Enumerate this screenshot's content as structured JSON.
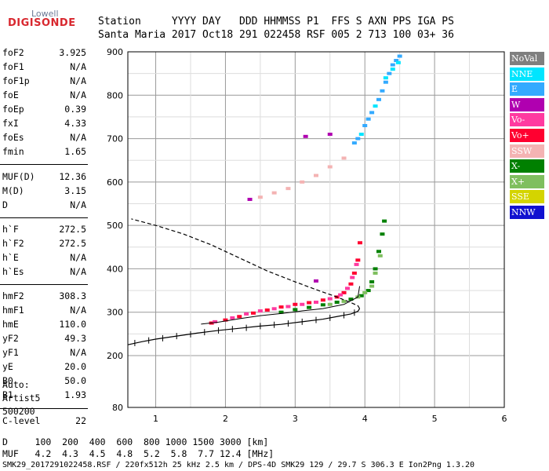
{
  "logo": {
    "top": "Lowell",
    "main": "DIGISONDE"
  },
  "header": {
    "line1": "Station     YYYY DAY   DDD HHMMSS P1  FFS S AXN PPS IGA PS",
    "line2": "Santa Maria 2017 Oct18 291 022458 RSF 005 2 713 100 03+ 36"
  },
  "params": [
    {
      "k": "foF2",
      "v": "3.925"
    },
    {
      "k": "foF1",
      "v": "N/A"
    },
    {
      "k": "foF1p",
      "v": "N/A"
    },
    {
      "k": "foE",
      "v": "N/A"
    },
    {
      "k": "foEp",
      "v": "0.39"
    },
    {
      "k": "fxI",
      "v": "4.33"
    },
    {
      "k": "foEs",
      "v": "N/A"
    },
    {
      "k": "fmin",
      "v": "1.65"
    },
    {
      "k": "MUF(D)",
      "v": "12.36"
    },
    {
      "k": "M(D)",
      "v": "3.15"
    },
    {
      "k": "D",
      "v": "N/A"
    },
    {
      "k": "h`F",
      "v": "272.5"
    },
    {
      "k": "h`F2",
      "v": "272.5"
    },
    {
      "k": "h`E",
      "v": "N/A"
    },
    {
      "k": "h`Es",
      "v": "N/A"
    },
    {
      "k": "hmF2",
      "v": "308.3"
    },
    {
      "k": "hmF1",
      "v": "N/A"
    },
    {
      "k": "hmE",
      "v": "110.0"
    },
    {
      "k": "yF2",
      "v": "49.3"
    },
    {
      "k": "yF1",
      "v": "N/A"
    },
    {
      "k": "yE",
      "v": "20.0"
    },
    {
      "k": "B0",
      "v": "50.0"
    },
    {
      "k": "B1",
      "v": "1.93"
    },
    {
      "k": "C-level",
      "v": "22"
    }
  ],
  "auto": {
    "line1": "Auto:",
    "line2": "Artist5",
    "line3": "500200"
  },
  "footer": {
    "d_line": "D     100  200  400  600  800 1000 1500 3000 [km]",
    "muf_line": "MUF   4.2  4.3  4.5  4.8  5.2  5.8  7.7 12.4 [MHz]",
    "file_line": "SMK29_2017291022458.RSF / 220fx512h 25 kHz 2.5 km / DPS-4D SMK29 129 / 29.7 S 306.3 E Ion2Png 1.3.20"
  },
  "legend": [
    {
      "label": "NoVal",
      "color": "#7f7f7f"
    },
    {
      "label": "NNE",
      "color": "#00e5ff"
    },
    {
      "label": "E",
      "color": "#33aaff"
    },
    {
      "label": "W",
      "color": "#b000b0"
    },
    {
      "label": "Vo-",
      "color": "#ff3aa0"
    },
    {
      "label": "Vo+",
      "color": "#ff0030"
    },
    {
      "label": "SSW",
      "color": "#f4b3b3"
    },
    {
      "label": "X-",
      "color": "#008000"
    },
    {
      "label": "X+",
      "color": "#7fbf5f"
    },
    {
      "label": "SSE",
      "color": "#d4d400"
    },
    {
      "label": "NNW",
      "color": "#1010d0"
    }
  ],
  "chart_data": {
    "type": "scatter",
    "xlabel": "",
    "ylabel": "",
    "xlim": [
      0.6,
      6.0
    ],
    "ylim": [
      80,
      900
    ],
    "xticks": [
      1,
      2,
      3,
      4,
      5,
      6
    ],
    "yticks": [
      80,
      200,
      300,
      400,
      500,
      600,
      700,
      800,
      900
    ],
    "series": [
      {
        "name": "Vo+",
        "color": "#ff0030",
        "points": [
          [
            1.8,
            275
          ],
          [
            2.0,
            282
          ],
          [
            2.2,
            290
          ],
          [
            2.4,
            298
          ],
          [
            2.6,
            305
          ],
          [
            2.8,
            312
          ],
          [
            3.0,
            318
          ],
          [
            3.2,
            322
          ],
          [
            3.4,
            328
          ],
          [
            3.6,
            335
          ],
          [
            3.7,
            345
          ],
          [
            3.8,
            365
          ],
          [
            3.85,
            390
          ],
          [
            3.9,
            420
          ],
          [
            3.93,
            460
          ]
        ]
      },
      {
        "name": "Vo-",
        "color": "#ff3aa0",
        "points": [
          [
            1.85,
            278
          ],
          [
            2.1,
            287
          ],
          [
            2.3,
            296
          ],
          [
            2.5,
            303
          ],
          [
            2.7,
            308
          ],
          [
            2.9,
            313
          ],
          [
            3.1,
            318
          ],
          [
            3.3,
            323
          ],
          [
            3.5,
            331
          ],
          [
            3.65,
            340
          ],
          [
            3.75,
            355
          ],
          [
            3.82,
            380
          ],
          [
            3.88,
            410
          ]
        ]
      },
      {
        "name": "X-",
        "color": "#008000",
        "points": [
          [
            2.8,
            300
          ],
          [
            3.0,
            306
          ],
          [
            3.2,
            311
          ],
          [
            3.4,
            317
          ],
          [
            3.6,
            323
          ],
          [
            3.8,
            330
          ],
          [
            3.95,
            338
          ],
          [
            4.05,
            350
          ],
          [
            4.1,
            370
          ],
          [
            4.15,
            400
          ],
          [
            4.2,
            440
          ],
          [
            4.25,
            480
          ],
          [
            4.28,
            510
          ]
        ]
      },
      {
        "name": "X+",
        "color": "#7fbf5f",
        "points": [
          [
            3.5,
            318
          ],
          [
            3.7,
            325
          ],
          [
            3.9,
            335
          ],
          [
            4.0,
            345
          ],
          [
            4.1,
            360
          ],
          [
            4.15,
            390
          ],
          [
            4.22,
            430
          ]
        ]
      },
      {
        "name": "SSW",
        "color": "#f4b3b3",
        "points": [
          [
            2.5,
            565
          ],
          [
            2.7,
            575
          ],
          [
            2.9,
            585
          ],
          [
            3.1,
            600
          ],
          [
            3.3,
            615
          ],
          [
            3.5,
            635
          ],
          [
            3.7,
            655
          ]
        ]
      },
      {
        "name": "E",
        "color": "#33aaff",
        "points": [
          [
            3.9,
            700
          ],
          [
            4.0,
            730
          ],
          [
            4.1,
            760
          ],
          [
            4.2,
            790
          ],
          [
            4.25,
            810
          ],
          [
            4.3,
            830
          ],
          [
            4.35,
            850
          ],
          [
            4.4,
            870
          ],
          [
            4.45,
            880
          ],
          [
            4.5,
            890
          ],
          [
            3.85,
            690
          ],
          [
            4.05,
            745
          ]
        ]
      },
      {
        "name": "NNE",
        "color": "#00e5ff",
        "points": [
          [
            3.95,
            710
          ],
          [
            4.15,
            775
          ],
          [
            4.3,
            840
          ],
          [
            4.4,
            860
          ],
          [
            4.48,
            875
          ]
        ]
      },
      {
        "name": "W",
        "color": "#b000b0",
        "points": [
          [
            2.35,
            560
          ],
          [
            3.15,
            705
          ],
          [
            3.5,
            710
          ],
          [
            3.3,
            372
          ]
        ]
      }
    ],
    "trace": [
      [
        1.65,
        272.5
      ],
      [
        1.9,
        277
      ],
      [
        2.2,
        285
      ],
      [
        2.5,
        292
      ],
      [
        2.8,
        297
      ],
      [
        3.1,
        303
      ],
      [
        3.4,
        308.3
      ],
      [
        3.7,
        318
      ],
      [
        3.9,
        335
      ],
      [
        3.925,
        360
      ]
    ],
    "profile": [
      [
        0.6,
        225
      ],
      [
        0.8,
        232
      ],
      [
        1.0,
        238
      ],
      [
        1.3,
        245
      ],
      [
        1.6,
        252
      ],
      [
        1.9,
        258
      ],
      [
        2.2,
        263
      ],
      [
        2.5,
        268
      ],
      [
        2.8,
        272
      ],
      [
        3.1,
        278
      ],
      [
        3.4,
        284
      ],
      [
        3.6,
        290
      ],
      [
        3.8,
        296
      ],
      [
        3.9,
        302
      ],
      [
        3.925,
        308.3
      ],
      [
        3.9,
        315
      ],
      [
        3.8,
        322
      ],
      [
        3.6,
        335
      ],
      [
        3.3,
        352
      ],
      [
        3.0,
        370
      ],
      [
        2.6,
        395
      ],
      [
        2.2,
        425
      ],
      [
        1.8,
        455
      ],
      [
        1.4,
        480
      ],
      [
        1.0,
        500
      ],
      [
        0.65,
        515
      ]
    ],
    "profile_ticks": [
      [
        0.7,
        229
      ],
      [
        0.9,
        235
      ],
      [
        1.1,
        240
      ],
      [
        1.3,
        245
      ],
      [
        1.5,
        249
      ],
      [
        1.7,
        254
      ],
      [
        1.9,
        258
      ],
      [
        2.1,
        261
      ],
      [
        2.3,
        264
      ],
      [
        2.5,
        268
      ],
      [
        2.7,
        271
      ],
      [
        2.9,
        274
      ],
      [
        3.1,
        278
      ],
      [
        3.3,
        282
      ],
      [
        3.5,
        287
      ],
      [
        3.7,
        293
      ],
      [
        3.85,
        299
      ]
    ]
  }
}
